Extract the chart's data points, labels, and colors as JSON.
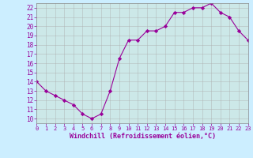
{
  "x": [
    0,
    1,
    2,
    3,
    4,
    5,
    6,
    7,
    8,
    9,
    10,
    11,
    12,
    13,
    14,
    15,
    16,
    17,
    18,
    19,
    20,
    21,
    22,
    23
  ],
  "y": [
    14,
    13,
    12.5,
    12,
    11.5,
    10.5,
    10,
    10.5,
    13,
    16.5,
    18.5,
    18.5,
    19.5,
    19.5,
    20,
    21.5,
    21.5,
    22,
    22,
    22.5,
    21.5,
    21,
    19.5,
    18.5
  ],
  "xlim": [
    0,
    23
  ],
  "ylim": [
    9.5,
    22.5
  ],
  "yticks": [
    10,
    11,
    12,
    13,
    14,
    15,
    16,
    17,
    18,
    19,
    20,
    21,
    22
  ],
  "xticks": [
    0,
    1,
    2,
    3,
    4,
    5,
    6,
    7,
    8,
    9,
    10,
    11,
    12,
    13,
    14,
    15,
    16,
    17,
    18,
    19,
    20,
    21,
    22,
    23
  ],
  "xlabel": "Windchill (Refroidissement éolien,°C)",
  "line_color": "#990099",
  "marker": "D",
  "marker_size": 2.2,
  "bg_color": "#cceeff",
  "plot_bg_color": "#cce8e8",
  "grid_color": "#aaaaaa",
  "tick_label_color": "#990099",
  "xlabel_color": "#990099",
  "spine_color": "#888888"
}
